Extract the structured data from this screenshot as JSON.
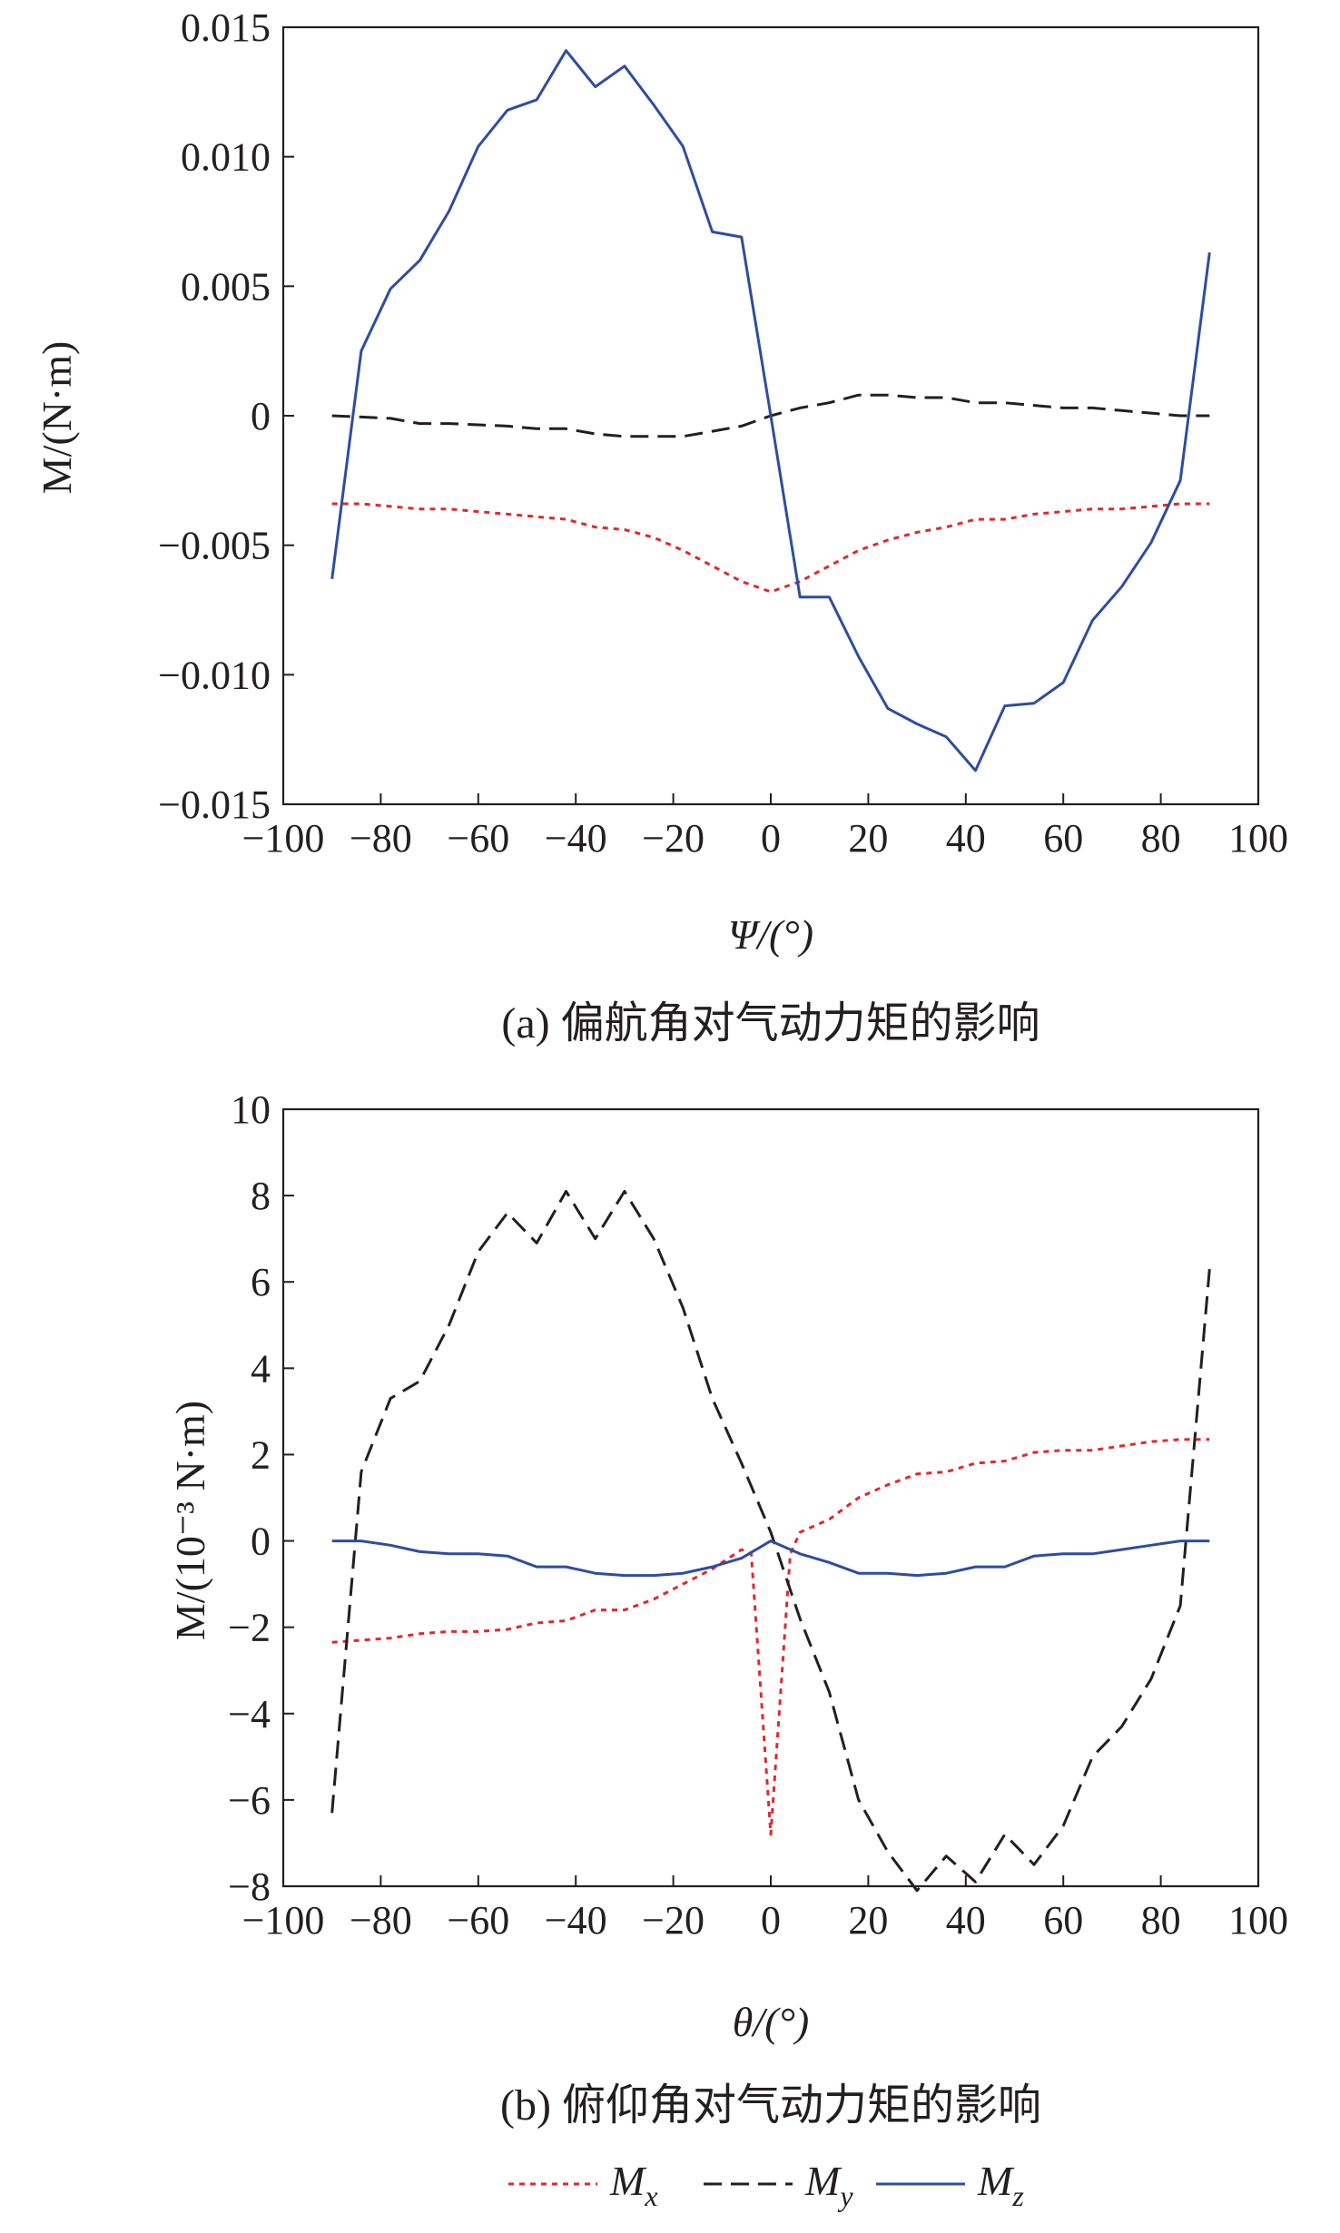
{
  "colors": {
    "Mx": "#e0282e",
    "My": "#231f20",
    "Mz": "#2e4da0"
  },
  "legend": [
    {
      "key": "Mx",
      "base": "M",
      "sub": "x",
      "dash": "6,6"
    },
    {
      "key": "My",
      "base": "M",
      "sub": "y",
      "dash": "20,10"
    },
    {
      "key": "Mz",
      "base": "M",
      "sub": "z",
      "dash": ""
    }
  ],
  "chart_data": [
    {
      "type": "line",
      "caption": "(a) 偏航角对气动力矩的影响",
      "xlabel": "Ψ/(°)",
      "ylabel": "M/(N·m)",
      "xlim": [
        -100,
        100
      ],
      "ylim": [
        -0.015,
        0.015
      ],
      "xticks": [
        -100,
        -80,
        -60,
        -40,
        -20,
        0,
        20,
        40,
        60,
        80,
        100
      ],
      "xtick_labels": [
        "−100",
        "−80",
        "−60",
        "−40",
        "−20",
        "0",
        "20",
        "40",
        "60",
        "80",
        "100"
      ],
      "yticks": [
        0.015,
        0.01,
        0.005,
        0,
        -0.005,
        -0.01,
        -0.015
      ],
      "ytick_labels": [
        "0.015",
        "0.010",
        "0.005",
        "0",
        "−0.005",
        "−0.010",
        "−0.015"
      ],
      "x": [
        -90,
        -84,
        -78,
        -72,
        -66,
        -60,
        -54,
        -48,
        -42,
        -36,
        -30,
        -24,
        -18,
        -12,
        -6,
        0,
        6,
        12,
        18,
        24,
        30,
        36,
        42,
        48,
        54,
        60,
        66,
        72,
        78,
        84,
        90
      ],
      "series": [
        {
          "key": "Mx",
          "values": [
            -0.0034,
            -0.0034,
            -0.0035,
            -0.0036,
            -0.0036,
            -0.0037,
            -0.0038,
            -0.0039,
            -0.004,
            -0.0043,
            -0.0044,
            -0.0047,
            -0.0052,
            -0.0058,
            -0.0064,
            -0.0068,
            -0.0064,
            -0.0058,
            -0.0052,
            -0.0048,
            -0.0045,
            -0.0043,
            -0.004,
            -0.004,
            -0.0038,
            -0.0037,
            -0.0036,
            -0.0036,
            -0.0035,
            -0.0034,
            -0.0034
          ]
        },
        {
          "key": "My",
          "values": [
            0,
            -5e-05,
            -0.0001,
            -0.0003,
            -0.0003,
            -0.00035,
            -0.0004,
            -0.0005,
            -0.0005,
            -0.0007,
            -0.0008,
            -0.0008,
            -0.0008,
            -0.0006,
            -0.0004,
            0,
            0.0003,
            0.0005,
            0.0008,
            0.0008,
            0.0007,
            0.0007,
            0.0005,
            0.0005,
            0.0004,
            0.0003,
            0.0003,
            0.0002,
            0.0001,
            0,
            0
          ]
        },
        {
          "key": "Mz",
          "values": [
            -0.0063,
            0.0025,
            0.0049,
            0.006,
            0.0079,
            0.0104,
            0.0118,
            0.0122,
            0.0141,
            0.0127,
            0.0135,
            0.012,
            0.0104,
            0.0071,
            0.0069,
            0.0,
            -0.007,
            -0.007,
            -0.0093,
            -0.0113,
            -0.0119,
            -0.0124,
            -0.0137,
            -0.0112,
            -0.0111,
            -0.0103,
            -0.0079,
            -0.0066,
            -0.0049,
            -0.0025,
            0.0063
          ]
        }
      ]
    },
    {
      "type": "line",
      "caption": "(b) 俯仰角对气动力矩的影响",
      "xlabel": "θ/(°)",
      "ylabel": "M/(10⁻³ N·m)",
      "xlim": [
        -100,
        100
      ],
      "ylim": [
        -8,
        10
      ],
      "xticks": [
        -100,
        -80,
        -60,
        -40,
        -20,
        0,
        20,
        40,
        60,
        80,
        100
      ],
      "xtick_labels": [
        "−100",
        "−80",
        "−60",
        "−40",
        "−20",
        "0",
        "20",
        "40",
        "60",
        "80",
        "100"
      ],
      "yticks": [
        10,
        8,
        6,
        4,
        2,
        0,
        -2,
        -4,
        -6,
        -8
      ],
      "ytick_labels": [
        "10",
        "8",
        "6",
        "4",
        "2",
        "0",
        "−2",
        "−4",
        "−6",
        "−8"
      ],
      "x": [
        -90,
        -84,
        -78,
        -72,
        -66,
        -60,
        -54,
        -48,
        -42,
        -36,
        -30,
        -24,
        -18,
        -12,
        -6,
        0,
        6,
        12,
        18,
        24,
        30,
        36,
        42,
        48,
        54,
        60,
        66,
        72,
        78,
        84,
        90
      ],
      "series": [
        {
          "key": "Mx",
          "x": [
            -90,
            -84,
            -78,
            -72,
            -66,
            -60,
            -54,
            -48,
            -42,
            -36,
            -30,
            -24,
            -18,
            -12,
            -6,
            -4,
            0,
            4,
            6,
            12,
            18,
            24,
            30,
            36,
            42,
            48,
            54,
            60,
            66,
            72,
            78,
            84,
            90
          ],
          "values": [
            -2.35,
            -2.3,
            -2.25,
            -2.15,
            -2.1,
            -2.1,
            -2.05,
            -1.9,
            -1.85,
            -1.6,
            -1.6,
            -1.35,
            -1.0,
            -0.65,
            -0.2,
            -0.3,
            -6.8,
            -0.3,
            0.2,
            0.5,
            1.0,
            1.3,
            1.55,
            1.6,
            1.8,
            1.85,
            2.05,
            2.1,
            2.1,
            2.2,
            2.3,
            2.35,
            2.35
          ]
        },
        {
          "key": "My",
          "values": [
            -6.3,
            1.6,
            3.3,
            3.7,
            5.0,
            6.7,
            7.6,
            6.9,
            8.1,
            7.0,
            8.1,
            7.0,
            5.4,
            3.3,
            1.8,
            0.2,
            -1.8,
            -3.5,
            -6.0,
            -7.2,
            -8.1,
            -7.3,
            -7.9,
            -6.8,
            -7.5,
            -6.6,
            -5.0,
            -4.3,
            -3.2,
            -1.5,
            6.3
          ]
        },
        {
          "key": "Mz",
          "values": [
            0,
            0,
            -0.1,
            -0.25,
            -0.3,
            -0.3,
            -0.35,
            -0.6,
            -0.6,
            -0.75,
            -0.8,
            -0.8,
            -0.75,
            -0.6,
            -0.4,
            0,
            -0.3,
            -0.5,
            -0.75,
            -0.75,
            -0.8,
            -0.75,
            -0.6,
            -0.6,
            -0.35,
            -0.3,
            -0.3,
            -0.2,
            -0.1,
            0,
            0
          ]
        }
      ]
    }
  ]
}
